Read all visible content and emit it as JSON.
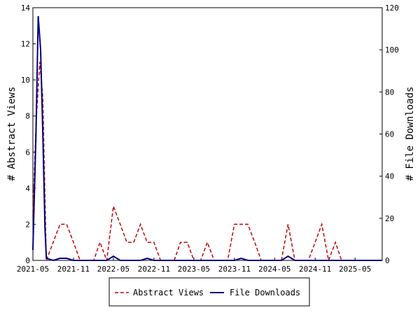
{
  "chart_data": {
    "type": "line",
    "title": "",
    "y_left_label": "# Abstract Views",
    "y_right_label": "# File Downloads",
    "y_left_lim": [
      0,
      14
    ],
    "y_right_lim": [
      0,
      120
    ],
    "y_left_ticks": [
      0,
      2,
      4,
      6,
      8,
      10,
      12,
      14
    ],
    "y_right_ticks": [
      0,
      20,
      40,
      60,
      80,
      100,
      120
    ],
    "x_lim": [
      "2021-05-01",
      "2025-09-01"
    ],
    "x_ticks": [
      "2021-05",
      "2021-11",
      "2022-05",
      "2022-11",
      "2023-05",
      "2023-11",
      "2024-05",
      "2024-11",
      "2025-05"
    ],
    "grid": false,
    "legend_position": "bottom-center",
    "series": [
      {
        "name": "Abstract Views",
        "axis": "left",
        "color": "#c00000",
        "style": "dashed",
        "points": [
          [
            "2021-05-01",
            2.5
          ],
          [
            "2021-05-15",
            7.5
          ],
          [
            "2021-06-01",
            11
          ],
          [
            "2021-06-15",
            9
          ],
          [
            "2021-07-01",
            0
          ],
          [
            "2021-08-01",
            1
          ],
          [
            "2021-09-01",
            2
          ],
          [
            "2021-10-01",
            2
          ],
          [
            "2021-11-01",
            1
          ],
          [
            "2021-12-01",
            0
          ],
          [
            "2022-01-01",
            0
          ],
          [
            "2022-02-01",
            0
          ],
          [
            "2022-03-01",
            1
          ],
          [
            "2022-04-01",
            0
          ],
          [
            "2022-05-01",
            3
          ],
          [
            "2022-06-01",
            2
          ],
          [
            "2022-07-01",
            1
          ],
          [
            "2022-08-01",
            1
          ],
          [
            "2022-09-01",
            2
          ],
          [
            "2022-10-01",
            1
          ],
          [
            "2022-11-01",
            1
          ],
          [
            "2022-12-01",
            0
          ],
          [
            "2023-01-01",
            0
          ],
          [
            "2023-02-01",
            0
          ],
          [
            "2023-03-01",
            1
          ],
          [
            "2023-04-01",
            1
          ],
          [
            "2023-05-01",
            0
          ],
          [
            "2023-06-01",
            0
          ],
          [
            "2023-07-01",
            1
          ],
          [
            "2023-08-01",
            0
          ],
          [
            "2023-09-01",
            0
          ],
          [
            "2023-10-01",
            0
          ],
          [
            "2023-11-01",
            2
          ],
          [
            "2023-12-01",
            2
          ],
          [
            "2024-01-01",
            2
          ],
          [
            "2024-02-01",
            1
          ],
          [
            "2024-03-01",
            0
          ],
          [
            "2024-04-01",
            0
          ],
          [
            "2024-05-01",
            0
          ],
          [
            "2024-06-01",
            0
          ],
          [
            "2024-07-01",
            2
          ],
          [
            "2024-08-01",
            0
          ],
          [
            "2024-09-01",
            0
          ],
          [
            "2024-10-01",
            0
          ],
          [
            "2024-11-01",
            1
          ],
          [
            "2024-12-01",
            2
          ],
          [
            "2025-01-01",
            0
          ],
          [
            "2025-02-01",
            1
          ],
          [
            "2025-03-01",
            0
          ],
          [
            "2025-04-01",
            0
          ],
          [
            "2025-05-01",
            0
          ],
          [
            "2025-06-01",
            0
          ],
          [
            "2025-07-01",
            0
          ],
          [
            "2025-08-01",
            0
          ],
          [
            "2025-09-01",
            0
          ]
        ]
      },
      {
        "name": "File Downloads",
        "axis": "right",
        "color": "#000080",
        "style": "solid",
        "points": [
          [
            "2021-05-01",
            5
          ],
          [
            "2021-05-15",
            60
          ],
          [
            "2021-05-25",
            116
          ],
          [
            "2021-06-05",
            100
          ],
          [
            "2021-06-15",
            60
          ],
          [
            "2021-06-25",
            15
          ],
          [
            "2021-07-01",
            1
          ],
          [
            "2021-08-01",
            0
          ],
          [
            "2021-09-01",
            1
          ],
          [
            "2021-10-01",
            1
          ],
          [
            "2021-11-01",
            0
          ],
          [
            "2021-12-01",
            0
          ],
          [
            "2022-01-01",
            0
          ],
          [
            "2022-02-01",
            0
          ],
          [
            "2022-03-01",
            0
          ],
          [
            "2022-04-01",
            0
          ],
          [
            "2022-05-01",
            2
          ],
          [
            "2022-06-01",
            0
          ],
          [
            "2022-07-01",
            0
          ],
          [
            "2022-08-01",
            0
          ],
          [
            "2022-09-01",
            0
          ],
          [
            "2022-10-01",
            1
          ],
          [
            "2022-11-01",
            0
          ],
          [
            "2022-12-01",
            0
          ],
          [
            "2023-01-01",
            0
          ],
          [
            "2023-02-01",
            0
          ],
          [
            "2023-03-01",
            0
          ],
          [
            "2023-04-01",
            0
          ],
          [
            "2023-05-01",
            0
          ],
          [
            "2023-06-01",
            0
          ],
          [
            "2023-07-01",
            0
          ],
          [
            "2023-08-01",
            0
          ],
          [
            "2023-09-01",
            0
          ],
          [
            "2023-10-01",
            0
          ],
          [
            "2023-11-01",
            0
          ],
          [
            "2023-12-01",
            1
          ],
          [
            "2024-01-01",
            0
          ],
          [
            "2024-02-01",
            0
          ],
          [
            "2024-03-01",
            0
          ],
          [
            "2024-04-01",
            0
          ],
          [
            "2024-05-01",
            0
          ],
          [
            "2024-06-01",
            0
          ],
          [
            "2024-07-01",
            2
          ],
          [
            "2024-08-01",
            0
          ],
          [
            "2024-09-01",
            0
          ],
          [
            "2024-10-01",
            0
          ],
          [
            "2024-11-01",
            0
          ],
          [
            "2024-12-01",
            0
          ],
          [
            "2025-01-01",
            0
          ],
          [
            "2025-02-01",
            0
          ],
          [
            "2025-03-01",
            0
          ],
          [
            "2025-04-01",
            0
          ],
          [
            "2025-05-01",
            0
          ],
          [
            "2025-06-01",
            0
          ],
          [
            "2025-07-01",
            0
          ],
          [
            "2025-08-01",
            0
          ],
          [
            "2025-09-01",
            0
          ]
        ]
      }
    ]
  }
}
